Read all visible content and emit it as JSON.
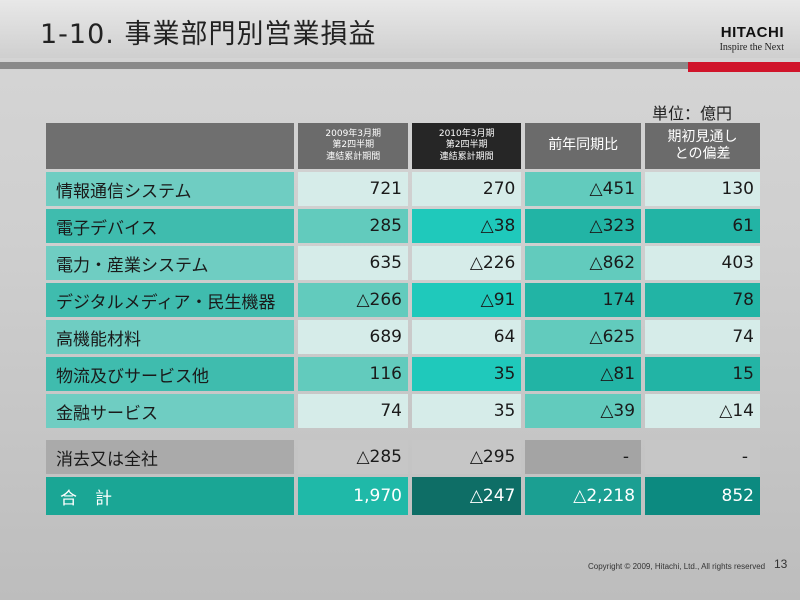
{
  "slide": {
    "title": "1-10. 事業部門別営業損益",
    "logo": "HITACHI",
    "tagline": "Inspire the Next",
    "unit": "単位：億円",
    "copyright": "Copyright © 2009, Hitachi, Ltd., All rights reserved",
    "page": "13"
  },
  "table": {
    "headers": [
      {
        "line1": "2009年3月期",
        "line2": "第2四半期",
        "line3": "連結累計期間"
      },
      {
        "line1": "2010年3月期",
        "line2": "第2四半期",
        "line3": "連結累計期間"
      },
      {
        "line1": "前年同期比",
        "line2": "",
        "line3": ""
      },
      {
        "line1": "期初見通し",
        "line2": "との偏差",
        "line3": ""
      }
    ],
    "rows": [
      {
        "label": "情報通信システム",
        "values": [
          "721",
          "270",
          "△451",
          "130"
        ]
      },
      {
        "label": "電子デバイス",
        "values": [
          "285",
          "△38",
          "△323",
          "61"
        ]
      },
      {
        "label": "電力・産業システム",
        "values": [
          "635",
          "△226",
          "△862",
          "403"
        ]
      },
      {
        "label": "デジタルメディア・民生機器",
        "values": [
          "△266",
          "△91",
          "174",
          "78"
        ]
      },
      {
        "label": "高機能材料",
        "values": [
          "689",
          "64",
          "△625",
          "74"
        ]
      },
      {
        "label": "物流及びサービス他",
        "values": [
          "116",
          "35",
          "△81",
          "15"
        ]
      },
      {
        "label": "金融サービス",
        "values": [
          "74",
          "35",
          "△39",
          "△14"
        ]
      }
    ],
    "elimination": {
      "label": "消去又は全社",
      "values": [
        "△285",
        "△295",
        "-",
        "-"
      ]
    },
    "total": {
      "label": "合計",
      "values": [
        "1,970",
        "△247",
        "△2,218",
        "852"
      ]
    }
  }
}
